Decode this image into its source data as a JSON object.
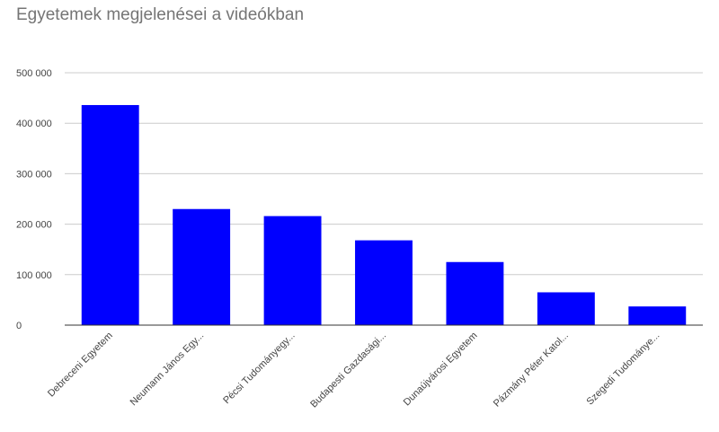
{
  "chart_data": {
    "type": "bar",
    "title": "Egyetemek megjelenései a videókban",
    "xlabel": "",
    "ylabel": "",
    "categories": [
      "Debreceni Egyetem",
      "Neumann János Egy...",
      "Pécsi Tudományegy...",
      "Budapesti Gazdasági...",
      "Dunaújvárosi Egyetem",
      "Pázmány Péter Katol...",
      "Szegedi Tudománye..."
    ],
    "values": [
      436000,
      230000,
      216000,
      168000,
      125000,
      65000,
      37000
    ],
    "ylim": [
      0,
      500000
    ],
    "yticks": [
      0,
      100000,
      200000,
      300000,
      400000,
      500000
    ],
    "ytick_labels": [
      "0",
      "100 000",
      "200 000",
      "300 000",
      "400 000",
      "500 000"
    ],
    "grid": true,
    "legend": "none",
    "bar_color": "#0000ff",
    "grid_color": "#cccccc",
    "axis_color": "#333333"
  }
}
